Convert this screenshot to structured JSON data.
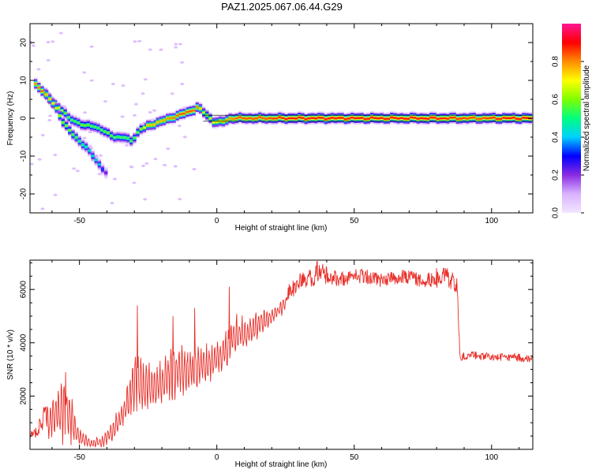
{
  "chart_data": [
    {
      "type": "heatmap",
      "title": "PAZ1.2025.067.06.44.G29",
      "xlabel": "Height of straight line (km)",
      "ylabel": "Frequency (Hz)",
      "xlim": [
        -68,
        115
      ],
      "ylim": [
        -25,
        25
      ],
      "xticks": [
        -50,
        0,
        50,
        100
      ],
      "yticks": [
        -20,
        -10,
        0,
        10,
        20
      ],
      "xtick_labels": [
        "-50",
        "0",
        "50",
        "100"
      ],
      "ytick_labels": [
        "-20",
        "-10",
        "0",
        "10",
        "20"
      ],
      "colorbar": {
        "label": "Normalized spectral amplitude",
        "range": [
          0,
          1
        ],
        "ticks": [
          "0.0",
          "0.2",
          "0.4",
          "0.6",
          "0.8"
        ],
        "colors": [
          "#f3e6ff",
          "#d9b3ff",
          "#8a2be2",
          "#0000ff",
          "#00d0ff",
          "#00ff7f",
          "#7fff00",
          "#ffff00",
          "#ff8c00",
          "#ff0000",
          "#ff1493"
        ]
      },
      "ridge": [
        {
          "x": -66,
          "f": 9,
          "a": 0.8
        },
        {
          "x": -63,
          "f": 7,
          "a": 0.85
        },
        {
          "x": -61,
          "f": 5,
          "a": 0.75
        },
        {
          "x": -58,
          "f": 3,
          "a": 0.7
        },
        {
          "x": -56,
          "f": 2,
          "a": 0.6
        },
        {
          "x": -54,
          "f": 0,
          "a": 0.55
        },
        {
          "x": -51,
          "f": -1,
          "a": 0.55
        },
        {
          "x": -48,
          "f": -2,
          "a": 0.6
        },
        {
          "x": -45,
          "f": -2,
          "a": 0.55
        },
        {
          "x": -42,
          "f": -3,
          "a": 0.55
        },
        {
          "x": -40,
          "f": -4,
          "a": 0.6
        },
        {
          "x": -37,
          "f": -5,
          "a": 0.55
        },
        {
          "x": -34,
          "f": -5,
          "a": 0.55
        },
        {
          "x": -31,
          "f": -6,
          "a": 0.55
        },
        {
          "x": -28,
          "f": -3,
          "a": 0.6
        },
        {
          "x": -25,
          "f": -2,
          "a": 0.75
        },
        {
          "x": -21,
          "f": -1,
          "a": 0.75
        },
        {
          "x": -17,
          "f": 0,
          "a": 0.8
        },
        {
          "x": -13,
          "f": 1,
          "a": 0.85
        },
        {
          "x": -9,
          "f": 2,
          "a": 0.85
        },
        {
          "x": -7,
          "f": 3,
          "a": 0.8
        },
        {
          "x": -4,
          "f": 1,
          "a": 0.6
        },
        {
          "x": -1,
          "f": -1,
          "a": 0.7
        },
        {
          "x": 2,
          "f": -1,
          "a": 0.75
        },
        {
          "x": 5,
          "f": 0,
          "a": 0.8
        },
        {
          "x": 8,
          "f": 0,
          "a": 0.85
        },
        {
          "x": 13,
          "f": 0,
          "a": 0.85
        },
        {
          "x": 18,
          "f": 0,
          "a": 0.85
        },
        {
          "x": 25,
          "f": 0,
          "a": 0.9
        },
        {
          "x": 40,
          "f": 0,
          "a": 0.9
        },
        {
          "x": 60,
          "f": 0,
          "a": 0.9
        },
        {
          "x": 80,
          "f": 0,
          "a": 0.9
        },
        {
          "x": 95,
          "f": 0,
          "a": 0.85
        },
        {
          "x": 105,
          "f": 0,
          "a": 0.9
        },
        {
          "x": 115,
          "f": 0,
          "a": 0.9
        }
      ],
      "side_branch": [
        {
          "x": -62,
          "f": 6,
          "a": 0.75
        },
        {
          "x": -59,
          "f": 3.5,
          "a": 0.7
        },
        {
          "x": -56,
          "f": -1,
          "a": 0.6
        },
        {
          "x": -54,
          "f": -3,
          "a": 0.6
        },
        {
          "x": -46,
          "f": -9,
          "a": 0.45
        },
        {
          "x": -43,
          "f": -12,
          "a": 0.45
        },
        {
          "x": -40,
          "f": -15,
          "a": 0.2
        }
      ]
    },
    {
      "type": "line",
      "xlabel": "Height of straight line (km)",
      "ylabel": "SNR (10 * v/v)",
      "xlim": [
        -68,
        115
      ],
      "ylim": [
        0,
        7100
      ],
      "xticks": [
        -50,
        0,
        50,
        100
      ],
      "yticks": [
        2000,
        4000,
        6000
      ],
      "xtick_labels": [
        "-50",
        "0",
        "50",
        "100"
      ],
      "ytick_labels": [
        "2000",
        "4000",
        "6000"
      ],
      "line_color": "#e8302a",
      "envelope_x": [
        -68,
        -64,
        -60,
        -56,
        -53,
        -50,
        -46,
        -42,
        -38,
        -34,
        -30,
        -26,
        -22,
        -18,
        -14,
        -10,
        -6,
        -2,
        2,
        6,
        10,
        14,
        18,
        22,
        26,
        30,
        34,
        38,
        42,
        46,
        50,
        55,
        60,
        65,
        70,
        75,
        80,
        84,
        87.5,
        88.5,
        90,
        95,
        100,
        105,
        110,
        115
      ],
      "envelope_lo": [
        100,
        150,
        200,
        150,
        100,
        100,
        50,
        50,
        200,
        800,
        1200,
        1400,
        1500,
        1600,
        1800,
        2000,
        2200,
        2500,
        2800,
        3300,
        3600,
        4000,
        4400,
        4800,
        5200,
        5500,
        5600,
        5800,
        5800,
        5800,
        5900,
        5900,
        5800,
        5900,
        5900,
        5800,
        5600,
        5600,
        5500,
        3200,
        3200,
        3200,
        3200,
        3100,
        3100,
        3100
      ],
      "envelope_hi": [
        600,
        1400,
        2100,
        2900,
        2200,
        800,
        400,
        500,
        1100,
        2000,
        3800,
        3400,
        3200,
        3800,
        4000,
        3900,
        4000,
        4000,
        4200,
        5200,
        5000,
        5200,
        5300,
        5500,
        6200,
        6600,
        6800,
        7000,
        6800,
        6700,
        6800,
        6800,
        6600,
        6700,
        6800,
        6500,
        6800,
        6800,
        6500,
        3500,
        3700,
        3700,
        3600,
        3600,
        3600,
        3500
      ],
      "spikes": [
        {
          "x": -55,
          "y": 2900
        },
        {
          "x": -29,
          "y": 5400
        },
        {
          "x": -16,
          "y": 5000
        },
        {
          "x": -8,
          "y": 5300
        },
        {
          "x": 4.5,
          "y": 6100
        },
        {
          "x": 36.5,
          "y": 7050
        },
        {
          "x": 80,
          "y": 6800
        }
      ]
    }
  ]
}
